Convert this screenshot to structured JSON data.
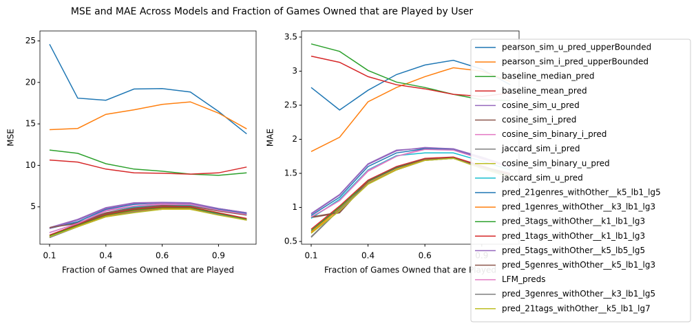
{
  "title": "MSE and MAE Across Models and Fraction of Games Owned that are Played by User",
  "chart_data": [
    {
      "type": "line",
      "xlabel": "Fraction of Games Owned that are Played",
      "ylabel": "MSE",
      "categories": [
        "0.1",
        null,
        "0.4",
        null,
        "0.6",
        null,
        "0.9",
        null
      ],
      "ylim": [
        0.5,
        26.2
      ],
      "yticks": [
        5,
        10,
        15,
        20,
        25
      ],
      "series": [
        {
          "color": "#1f77b4",
          "values": [
            24.6,
            18.1,
            17.85,
            19.2,
            19.25,
            18.85,
            16.5,
            13.8
          ]
        },
        {
          "color": "#ff7f0e",
          "values": [
            14.3,
            14.45,
            16.15,
            16.7,
            17.35,
            17.65,
            16.3,
            14.4
          ]
        },
        {
          "color": "#2ca02c",
          "values": [
            11.85,
            11.45,
            10.2,
            9.55,
            9.3,
            8.95,
            8.8,
            9.1
          ]
        },
        {
          "color": "#d62728",
          "values": [
            10.65,
            10.4,
            9.55,
            9.1,
            9.05,
            8.95,
            9.1,
            9.8
          ]
        },
        {
          "color": "#9467bd",
          "values": [
            2.5,
            3.5,
            4.9,
            5.5,
            5.55,
            5.5,
            4.8,
            4.3
          ]
        },
        {
          "color": "#8c564b",
          "values": [
            2.5,
            3.1,
            4.3,
            4.9,
            5.2,
            5.2,
            4.6,
            4.1
          ]
        },
        {
          "color": "#e377c2",
          "values": [
            1.9,
            3.0,
            4.6,
            5.1,
            5.4,
            5.3,
            4.7,
            4.2
          ]
        },
        {
          "color": "#7f7f7f",
          "values": [
            1.3,
            2.7,
            3.8,
            4.4,
            4.8,
            4.8,
            4.1,
            3.4
          ]
        },
        {
          "color": "#bcbd22",
          "values": [
            1.4,
            2.6,
            3.9,
            4.4,
            4.7,
            4.7,
            4.1,
            3.4
          ]
        },
        {
          "color": "#17becf",
          "values": [
            1.9,
            3.0,
            4.5,
            5.0,
            5.3,
            5.2,
            4.6,
            4.1
          ]
        },
        {
          "color": "#1f77b4",
          "values": [
            2.4,
            3.2,
            4.7,
            5.3,
            5.5,
            5.4,
            4.7,
            4.2
          ]
        },
        {
          "color": "#ff7f0e",
          "values": [
            1.4,
            2.7,
            3.9,
            4.5,
            4.8,
            4.8,
            4.1,
            3.5
          ]
        },
        {
          "color": "#2ca02c",
          "values": [
            1.5,
            2.8,
            4.0,
            4.6,
            4.9,
            4.9,
            4.2,
            3.5
          ]
        },
        {
          "color": "#d62728",
          "values": [
            1.6,
            2.9,
            4.1,
            4.7,
            5.0,
            5.0,
            4.3,
            3.6
          ]
        },
        {
          "color": "#9467bd",
          "values": [
            2.4,
            3.4,
            4.8,
            5.4,
            5.5,
            5.4,
            4.8,
            4.3
          ]
        },
        {
          "color": "#8c564b",
          "values": [
            2.5,
            3.0,
            4.2,
            4.8,
            5.1,
            5.1,
            4.5,
            4.0
          ]
        },
        {
          "color": "#e377c2",
          "values": [
            1.9,
            3.0,
            4.5,
            5.1,
            5.3,
            5.3,
            4.6,
            4.1
          ]
        },
        {
          "color": "#7f7f7f",
          "values": [
            1.3,
            2.6,
            3.8,
            4.4,
            4.7,
            4.7,
            4.1,
            3.4
          ]
        },
        {
          "color": "#bcbd22",
          "values": [
            1.4,
            2.6,
            3.8,
            4.3,
            4.7,
            4.7,
            4.0,
            3.4
          ]
        }
      ]
    },
    {
      "type": "line",
      "xlabel": "Fraction of Games Owned that are Played",
      "ylabel": "MAE",
      "categories": [
        "0.1",
        null,
        "0.4",
        null,
        "0.6",
        null,
        "0.9",
        null
      ],
      "ylim": [
        0.46,
        3.59
      ],
      "yticks": [
        0.5,
        1.0,
        1.5,
        2.0,
        2.5,
        3.0,
        3.5
      ],
      "series": [
        {
          "name": "pearson_sim_u_pred_upperBounded",
          "color": "#1f77b4",
          "values": [
            2.76,
            2.43,
            2.72,
            2.95,
            3.09,
            3.16,
            3.03,
            2.8
          ]
        },
        {
          "name": "pearson_sim_i_pred_upperBounded",
          "color": "#ff7f0e",
          "values": [
            1.82,
            2.03,
            2.55,
            2.76,
            2.92,
            3.05,
            3.0,
            2.85
          ]
        },
        {
          "name": "baseline_median_pred",
          "color": "#2ca02c",
          "values": [
            3.4,
            3.29,
            3.01,
            2.84,
            2.76,
            2.66,
            2.58,
            2.57
          ]
        },
        {
          "name": "baseline_mean_pred",
          "color": "#d62728",
          "values": [
            3.22,
            3.13,
            2.92,
            2.8,
            2.74,
            2.66,
            2.63,
            2.68
          ]
        },
        {
          "name": "cosine_sim_u_pred",
          "color": "#9467bd",
          "values": [
            0.91,
            1.19,
            1.64,
            1.84,
            1.87,
            1.86,
            1.74,
            1.6
          ]
        },
        {
          "name": "cosine_sim_i_pred",
          "color": "#8c564b",
          "values": [
            0.85,
            0.92,
            1.38,
            1.58,
            1.71,
            1.72,
            1.6,
            1.5
          ]
        },
        {
          "name": "cosine_sim_binary_i_pred",
          "color": "#e377c2",
          "values": [
            0.85,
            1.1,
            1.53,
            1.75,
            1.86,
            1.85,
            1.72,
            1.6
          ]
        },
        {
          "name": "jaccard_sim_i_pred",
          "color": "#7f7f7f",
          "values": [
            0.56,
            0.97,
            1.35,
            1.55,
            1.69,
            1.72,
            1.58,
            1.45
          ]
        },
        {
          "name": "cosine_sim_binary_u_pred",
          "color": "#bcbd22",
          "values": [
            0.63,
            0.95,
            1.34,
            1.55,
            1.7,
            1.73,
            1.58,
            1.45
          ]
        },
        {
          "name": "jaccard_sim_u_pred",
          "color": "#17becf",
          "values": [
            0.84,
            1.12,
            1.55,
            1.76,
            1.8,
            1.8,
            1.68,
            1.55
          ]
        },
        {
          "name": "pred_21genres_withOther__k5_lb1_lg5",
          "color": "#1f77b4",
          "values": [
            0.88,
            1.15,
            1.6,
            1.8,
            1.86,
            1.85,
            1.72,
            1.58
          ]
        },
        {
          "name": "pred_1genres_withOther__k3_lb1_lg3",
          "color": "#ff7f0e",
          "values": [
            0.64,
            0.98,
            1.36,
            1.56,
            1.7,
            1.72,
            1.59,
            1.46
          ]
        },
        {
          "name": "pred_3tags_withOther__k1_lb1_lg3",
          "color": "#2ca02c",
          "values": [
            0.66,
            1.0,
            1.38,
            1.58,
            1.71,
            1.73,
            1.6,
            1.47
          ]
        },
        {
          "name": "pred_1tags_withOther__k1_lb1_lg3",
          "color": "#d62728",
          "values": [
            0.68,
            1.02,
            1.4,
            1.6,
            1.72,
            1.74,
            1.61,
            1.48
          ]
        },
        {
          "name": "pred_5tags_withOther__k5_lb5_lg5",
          "color": "#9467bd",
          "values": [
            0.9,
            1.18,
            1.63,
            1.83,
            1.88,
            1.86,
            1.73,
            1.59
          ]
        },
        {
          "name": "pred_5genres_withOther__k5_lb1_lg3",
          "color": "#8c564b",
          "values": [
            0.86,
            0.93,
            1.39,
            1.59,
            1.71,
            1.72,
            1.6,
            1.5
          ]
        },
        {
          "name": "LFM_preds",
          "color": "#e377c2",
          "values": [
            0.86,
            1.1,
            1.54,
            1.75,
            1.85,
            1.84,
            1.71,
            1.59
          ]
        },
        {
          "name": "pred_3genres_withOther__k3_lb1_lg5",
          "color": "#7f7f7f",
          "values": [
            0.57,
            0.97,
            1.35,
            1.55,
            1.69,
            1.72,
            1.58,
            1.45
          ]
        },
        {
          "name": "pred_21tags_withOther__k5_lb1_lg7",
          "color": "#bcbd22",
          "values": [
            0.62,
            0.95,
            1.34,
            1.55,
            1.69,
            1.72,
            1.57,
            1.44
          ]
        }
      ]
    }
  ]
}
